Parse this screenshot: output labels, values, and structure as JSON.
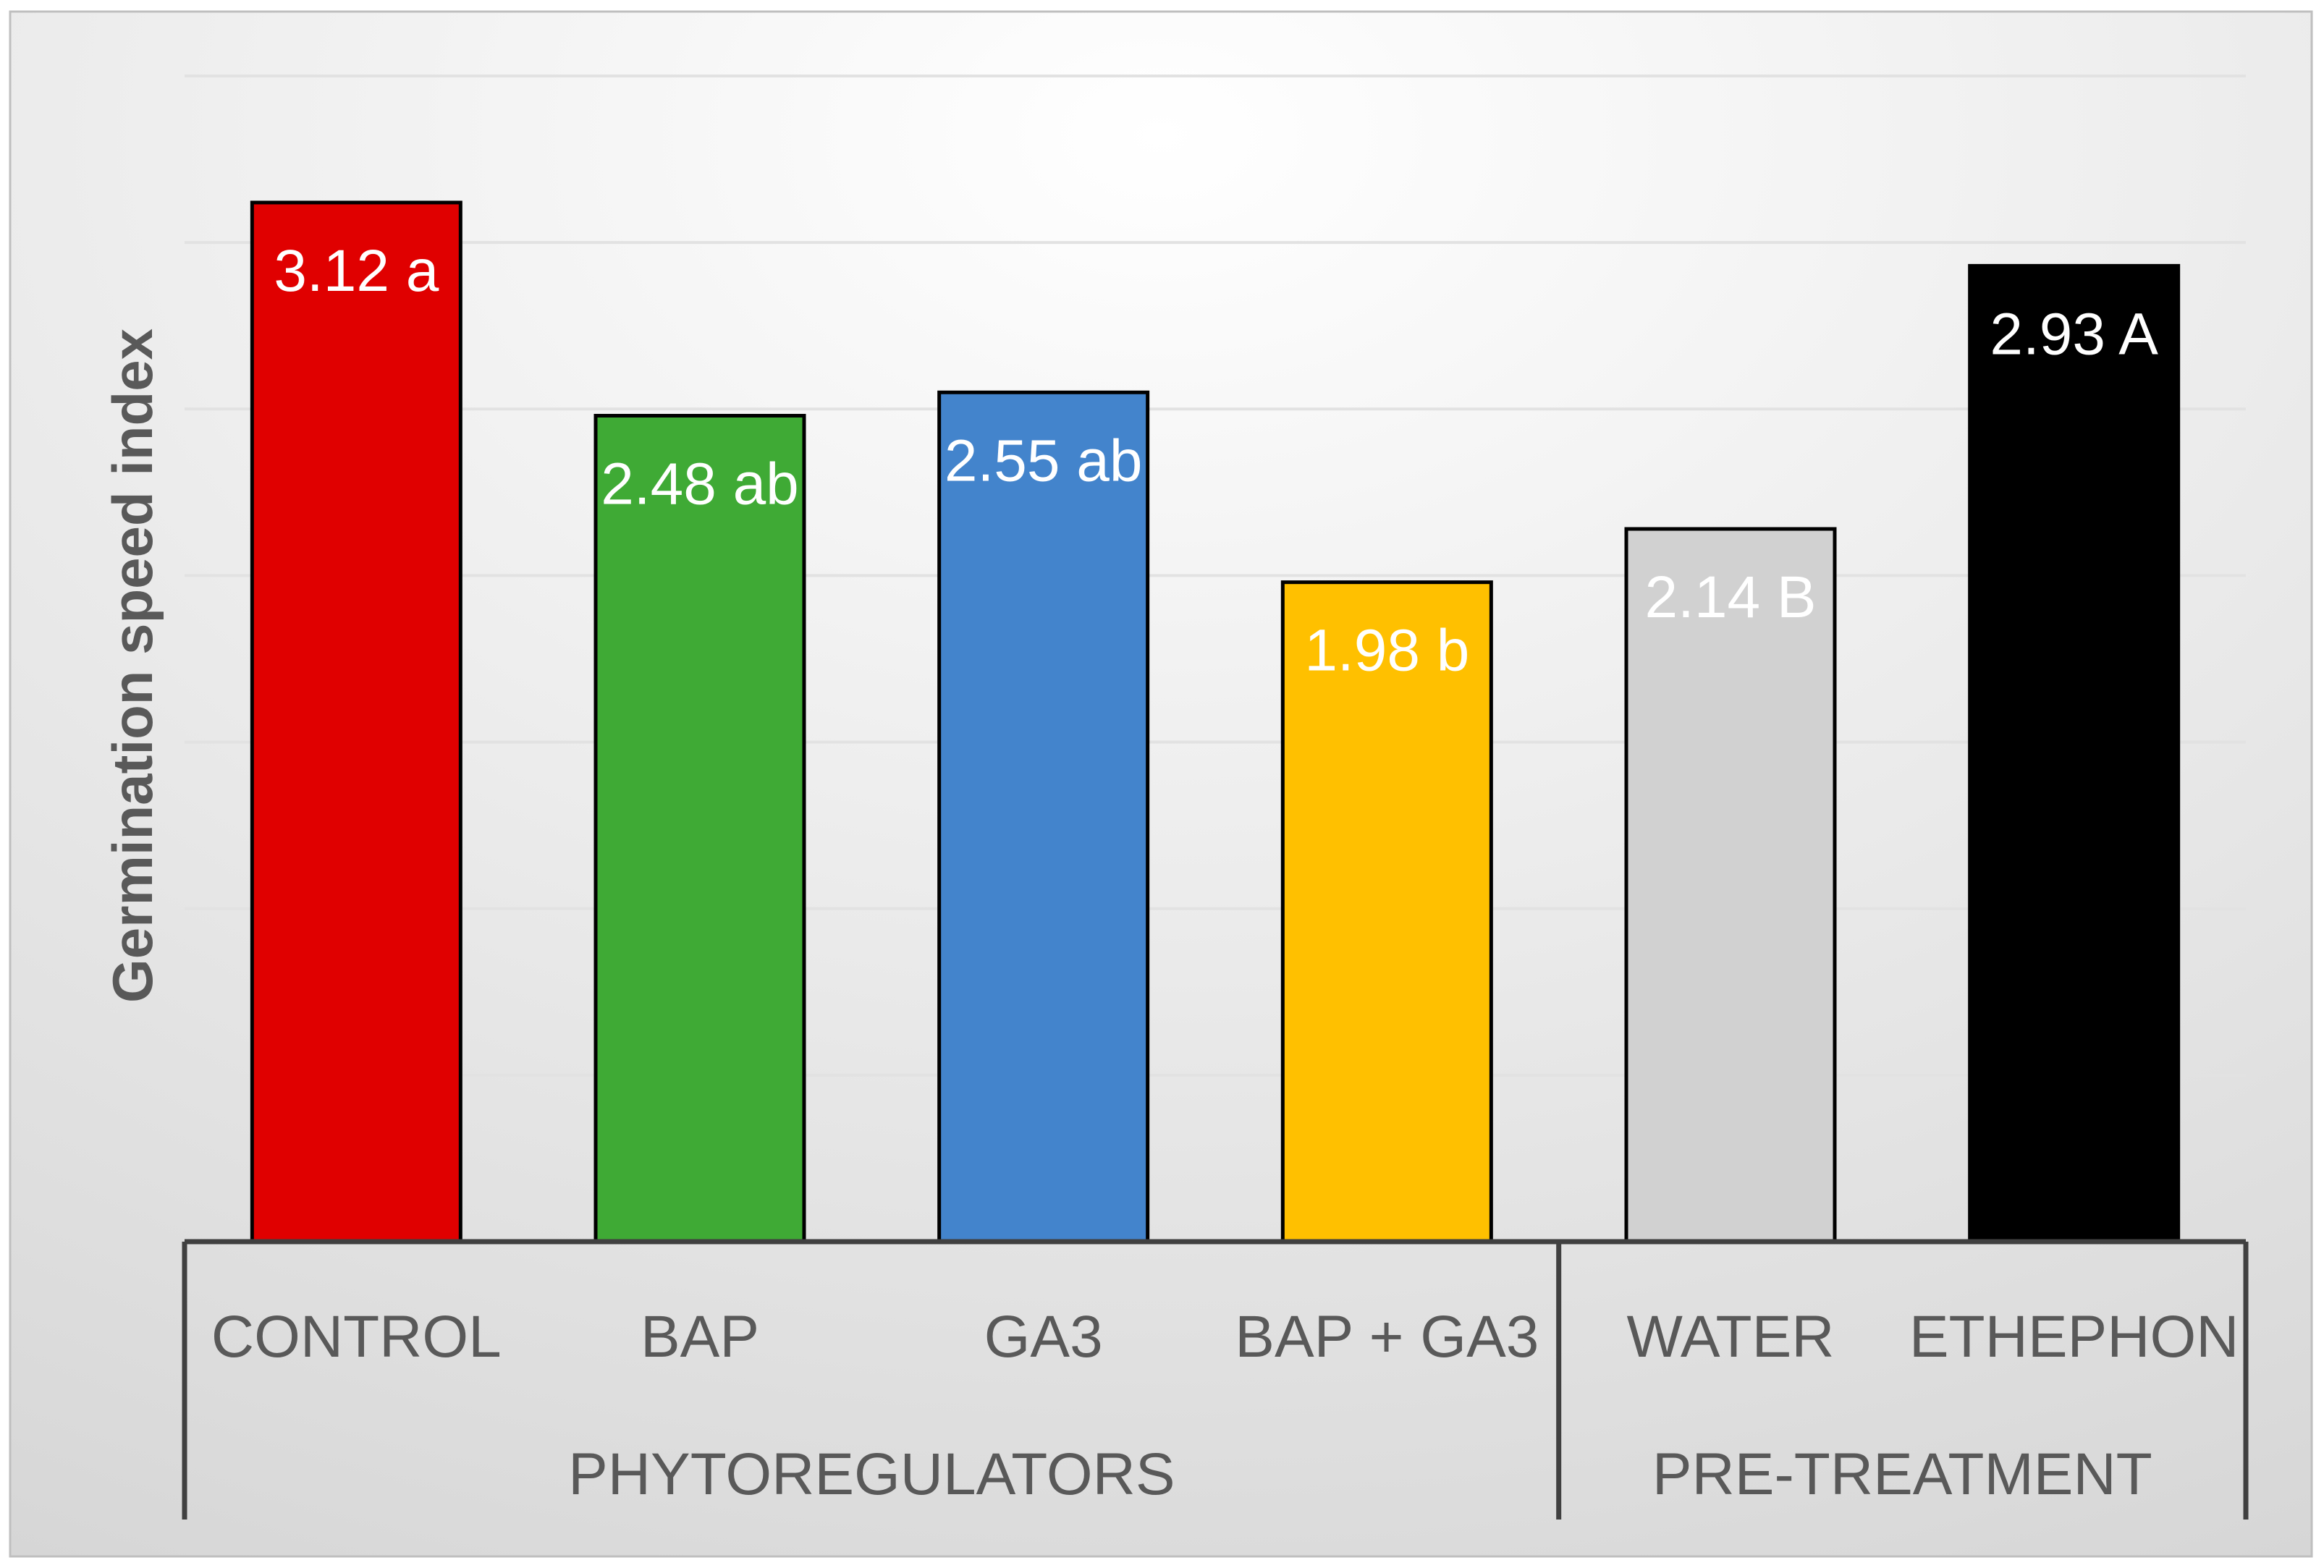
{
  "chart_data": {
    "type": "bar",
    "title": "",
    "xlabel": "",
    "ylabel": "Germination speed index",
    "ylim": [
      0,
      3.5
    ],
    "grid": true,
    "y_tick_labels_visible": false,
    "groups": [
      {
        "name": "PHYTOREGULATORS",
        "categories": [
          "CONTROL",
          "BAP",
          "GA3",
          "BAP + GA3"
        ]
      },
      {
        "name": "PRE-TREATMENT",
        "categories": [
          "WATER",
          "ETHEPHON"
        ]
      }
    ],
    "categories": [
      "CONTROL",
      "BAP",
      "GA3",
      "BAP + GA3",
      "WATER",
      "ETHEPHON"
    ],
    "values": [
      3.12,
      2.48,
      2.55,
      1.98,
      2.14,
      2.93
    ],
    "data_labels": [
      "3.12 a",
      "2.48 ab",
      "2.55 ab",
      "1.98 b",
      "2.14 B",
      "2.93 A"
    ],
    "bar_colors": [
      "#e00000",
      "#3faa35",
      "#4384cc",
      "#ffc000",
      "#d1d1d1",
      "#000000"
    ],
    "label_colors": [
      "#ffffff",
      "#ffffff",
      "#ffffff",
      "#ffffff",
      "#ffffff",
      "#ffffff"
    ],
    "colors": {
      "axis_text": "#595959",
      "axis_line": "#404040",
      "grid": "#e2e2e2",
      "frame": "#bfbfbf",
      "bar_border": "#000000",
      "bg_center": "#ffffff",
      "bg_edge": "#d4d4d4"
    }
  }
}
